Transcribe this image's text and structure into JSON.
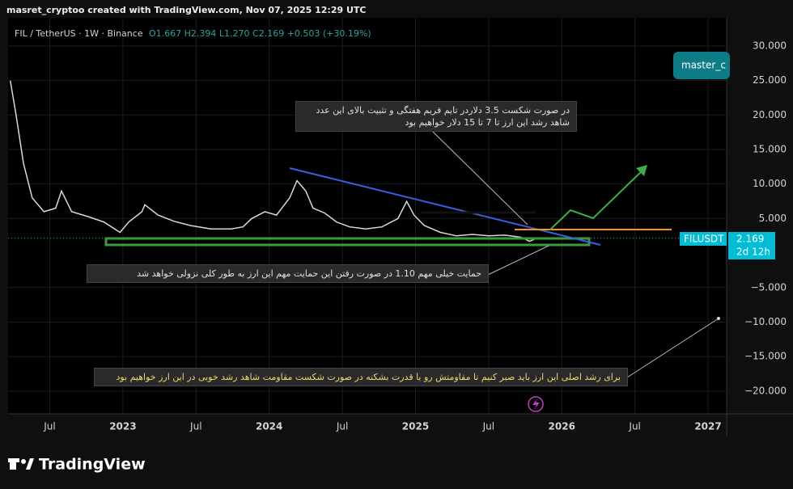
{
  "chart_data": {
    "type": "line",
    "header": "masret_cryptoo created with TradingView.com, Nov 07, 2025 12:29 UTC",
    "symbol": "FIL / TetherUS · 1W · Binance",
    "ohlc": "O1.667 H2.394 L1.270 C2.169 +0.503 (+30.19%)",
    "ticker": "FILUSDT",
    "last_price": 2.169,
    "countdown": "2d 12h",
    "author_badge": "master_c",
    "logo": "TradingView",
    "color": "#d9d9d9",
    "x": [
      2022.23,
      2022.27,
      2022.32,
      2022.38,
      2022.46,
      2022.54,
      2022.58,
      2022.65,
      2022.76,
      2022.87,
      2022.98,
      2023.04,
      2023.13,
      2023.15,
      2023.24,
      2023.35,
      2023.46,
      2023.6,
      2023.74,
      2023.82,
      2023.88,
      2023.97,
      2024.05,
      2024.14,
      2024.19,
      2024.25,
      2024.3,
      2024.38,
      2024.46,
      2024.55,
      2024.66,
      2024.77,
      2024.88,
      2024.94,
      2024.99,
      2025.06,
      2025.17,
      2025.28,
      2025.39,
      2025.5,
      2025.61,
      2025.72,
      2025.78,
      2025.83
    ],
    "values": [
      25,
      20,
      13,
      8,
      6,
      6.5,
      9,
      6,
      5.3,
      4.5,
      3,
      4.5,
      6,
      7,
      5.5,
      4.6,
      4,
      3.5,
      3.5,
      3.8,
      5,
      6,
      5.5,
      8,
      10.5,
      9,
      6.5,
      5.8,
      4.5,
      3.8,
      3.5,
      3.8,
      5,
      7.5,
      5.5,
      4,
      3,
      2.5,
      2.7,
      2.5,
      2.6,
      2.3,
      1.7,
      2.169
    ],
    "xlim": [
      2022.215,
      2027.127
    ],
    "xticks": [
      {
        "value": 2022.5,
        "label": "Jul"
      },
      2023,
      {
        "value": 2023.5,
        "label": "Jul"
      },
      2024,
      {
        "value": 2024.5,
        "label": "Jul"
      },
      2025,
      {
        "value": 2025.5,
        "label": "Jul"
      },
      2026,
      {
        "value": 2026.5,
        "label": "Jul"
      },
      2027
    ],
    "ylim": [
      -23.3,
      34.1
    ],
    "yticks": [
      {
        "value": 30,
        "label": "30.000"
      },
      {
        "value": 25,
        "label": "25.000"
      },
      {
        "value": 20,
        "label": "20.000"
      },
      {
        "value": 15,
        "label": "15.000"
      },
      {
        "value": 10,
        "label": "10.000"
      },
      {
        "value": 5,
        "label": "5.000"
      },
      {
        "value": -5,
        "label": "−5.000"
      },
      {
        "value": -10,
        "label": "−10.000"
      },
      {
        "value": -15,
        "label": "−15.000"
      },
      {
        "value": -20,
        "label": "−20.000"
      }
    ],
    "grid": true,
    "annotations": [
      [
        "در صورت شکست 3.5 دلاردر تایم فریم هفتگی و تثبیت بالای این عدد",
        "شاهد رشد این ارز تا 7 تا 15 دلار خواهیم بود"
      ],
      [
        "حمایت خیلی مهم 1.10 در صورت رفتن این حمایت مهم این ارز به طور کلی نزولی خواهد شد"
      ],
      [
        "برای رشد اصلی این ارز باید صبر کنیم تا مقاومتش رو با قدرت بشکنه در صورت شکست مقاومت شاهد رشد خوبی در این ارز خواهیم بود"
      ]
    ]
  }
}
